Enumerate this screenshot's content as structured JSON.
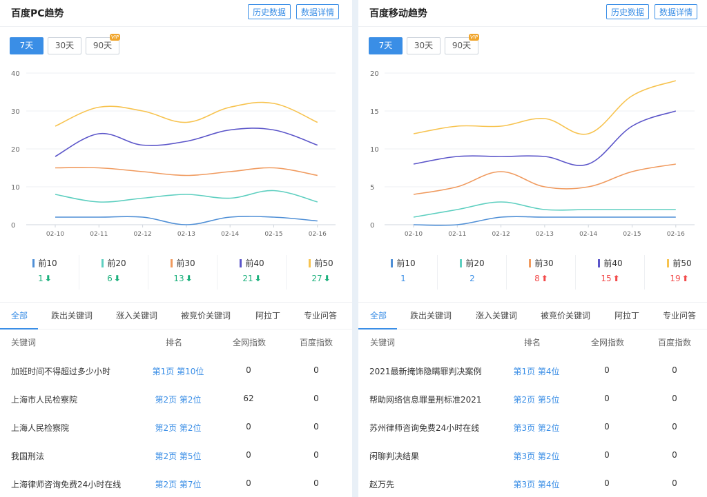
{
  "left": {
    "title": "百度PC趋势",
    "history_btn": "历史数据",
    "detail_btn": "数据详情",
    "ranges": [
      "7天",
      "30天",
      "90天"
    ],
    "vip": "VIP",
    "chart_data": {
      "type": "line",
      "categories": [
        "02-10",
        "02-11",
        "02-12",
        "02-13",
        "02-14",
        "02-15",
        "02-16"
      ],
      "yticks": [
        "0",
        "10",
        "20",
        "30",
        "40"
      ],
      "ylim": [
        0,
        40
      ],
      "series": [
        {
          "name": "前10",
          "color": "#4f8fd6",
          "values": [
            2,
            2,
            2,
            0,
            2,
            2,
            1
          ]
        },
        {
          "name": "前20",
          "color": "#5ecfc0",
          "values": [
            8,
            6,
            7,
            8,
            7,
            9,
            6
          ]
        },
        {
          "name": "前30",
          "color": "#f09a5e",
          "values": [
            15,
            15,
            14,
            13,
            14,
            15,
            13
          ]
        },
        {
          "name": "前40",
          "color": "#5b55c9",
          "values": [
            18,
            24,
            21,
            22,
            25,
            25,
            21
          ]
        },
        {
          "name": "前50",
          "color": "#f7c34f",
          "values": [
            26,
            31,
            30,
            27,
            31,
            32,
            27
          ]
        }
      ]
    },
    "stats": [
      {
        "label": "前10",
        "value": "1",
        "trend": "down"
      },
      {
        "label": "前20",
        "value": "6",
        "trend": "down"
      },
      {
        "label": "前30",
        "value": "13",
        "trend": "down"
      },
      {
        "label": "前40",
        "value": "21",
        "trend": "down"
      },
      {
        "label": "前50",
        "value": "27",
        "trend": "down"
      }
    ],
    "tabs": [
      "全部",
      "跌出关键词",
      "涨入关键词",
      "被竞价关键词",
      "阿拉丁",
      "专业问答"
    ],
    "headers": [
      "关键词",
      "排名",
      "全网指数",
      "百度指数"
    ],
    "rows": [
      {
        "keyword": "加班时间不得超过多少小时",
        "rank": "第1页 第10位",
        "net": "0",
        "baidu": "0"
      },
      {
        "keyword": "上海市人民检察院",
        "rank": "第2页 第2位",
        "net": "62",
        "baidu": "0"
      },
      {
        "keyword": "上海人民检察院",
        "rank": "第2页 第2位",
        "net": "0",
        "baidu": "0"
      },
      {
        "keyword": "我国刑法",
        "rank": "第2页 第5位",
        "net": "0",
        "baidu": "0"
      },
      {
        "keyword": "上海律师咨询免费24小时在线",
        "rank": "第2页 第7位",
        "net": "0",
        "baidu": "0"
      }
    ]
  },
  "right": {
    "title": "百度移动趋势",
    "history_btn": "历史数据",
    "detail_btn": "数据详情",
    "ranges": [
      "7天",
      "30天",
      "90天"
    ],
    "vip": "VIP",
    "chart_data": {
      "type": "line",
      "categories": [
        "02-10",
        "02-11",
        "02-12",
        "02-13",
        "02-14",
        "02-15",
        "02-16"
      ],
      "yticks": [
        "0",
        "5",
        "10",
        "15",
        "20"
      ],
      "ylim": [
        0,
        20
      ],
      "series": [
        {
          "name": "前10",
          "color": "#4f8fd6",
          "values": [
            0,
            0,
            1,
            1,
            1,
            1,
            1
          ]
        },
        {
          "name": "前20",
          "color": "#5ecfc0",
          "values": [
            1,
            2,
            3,
            2,
            2,
            2,
            2
          ]
        },
        {
          "name": "前30",
          "color": "#f09a5e",
          "values": [
            4,
            5,
            7,
            5,
            5,
            7,
            8
          ]
        },
        {
          "name": "前40",
          "color": "#5b55c9",
          "values": [
            8,
            9,
            9,
            9,
            8,
            13,
            15
          ]
        },
        {
          "name": "前50",
          "color": "#f7c34f",
          "values": [
            12,
            13,
            13,
            14,
            12,
            17,
            19
          ]
        }
      ]
    },
    "stats": [
      {
        "label": "前10",
        "value": "1",
        "trend": "none"
      },
      {
        "label": "前20",
        "value": "2",
        "trend": "none"
      },
      {
        "label": "前30",
        "value": "8",
        "trend": "up"
      },
      {
        "label": "前40",
        "value": "15",
        "trend": "up"
      },
      {
        "label": "前50",
        "value": "19",
        "trend": "up"
      }
    ],
    "tabs": [
      "全部",
      "跌出关键词",
      "涨入关键词",
      "被竞价关键词",
      "阿拉丁",
      "专业问答"
    ],
    "headers": [
      "关键词",
      "排名",
      "全网指数",
      "百度指数"
    ],
    "rows": [
      {
        "keyword": "2021最新掩饰隐瞒罪判决案例",
        "rank": "第1页 第4位",
        "net": "0",
        "baidu": "0"
      },
      {
        "keyword": "帮助网络信息罪量刑标准2021",
        "rank": "第2页 第5位",
        "net": "0",
        "baidu": "0"
      },
      {
        "keyword": "苏州律师咨询免费24小时在线",
        "rank": "第3页 第2位",
        "net": "0",
        "baidu": "0"
      },
      {
        "keyword": "闲聊判决结果",
        "rank": "第3页 第2位",
        "net": "0",
        "baidu": "0"
      },
      {
        "keyword": "赵万先",
        "rank": "第3页 第4位",
        "net": "0",
        "baidu": "0"
      }
    ]
  }
}
